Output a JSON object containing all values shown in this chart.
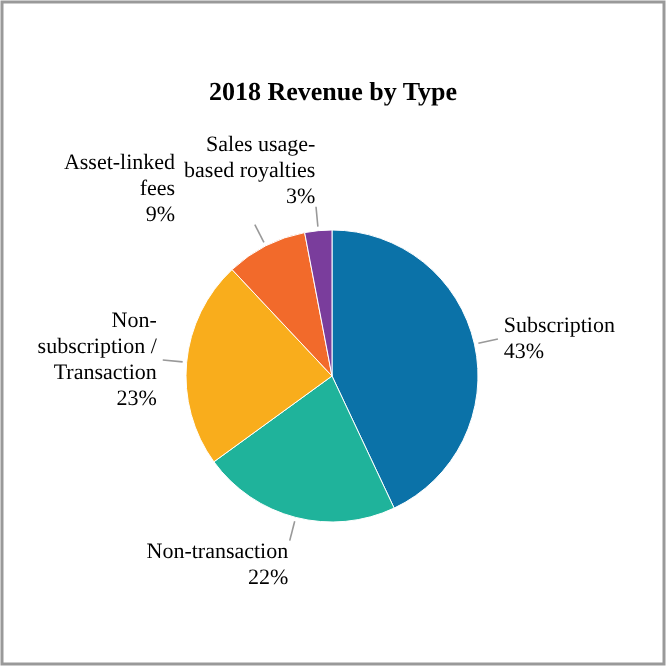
{
  "chart_data": {
    "type": "pie",
    "title": "2018 Revenue by Type",
    "categories": [
      "Subscription",
      "Non-transaction",
      "Non-subscription / Transaction",
      "Asset-linked fees",
      "Sales usage-based royalties"
    ],
    "values": [
      43,
      22,
      23,
      9,
      3
    ],
    "value_labels": [
      "43%",
      "22%",
      "23%",
      "9%",
      "3%"
    ],
    "colors": [
      "#0b72a8",
      "#1fb39b",
      "#f9ad1c",
      "#f26a2b",
      "#7a3d9c"
    ]
  }
}
